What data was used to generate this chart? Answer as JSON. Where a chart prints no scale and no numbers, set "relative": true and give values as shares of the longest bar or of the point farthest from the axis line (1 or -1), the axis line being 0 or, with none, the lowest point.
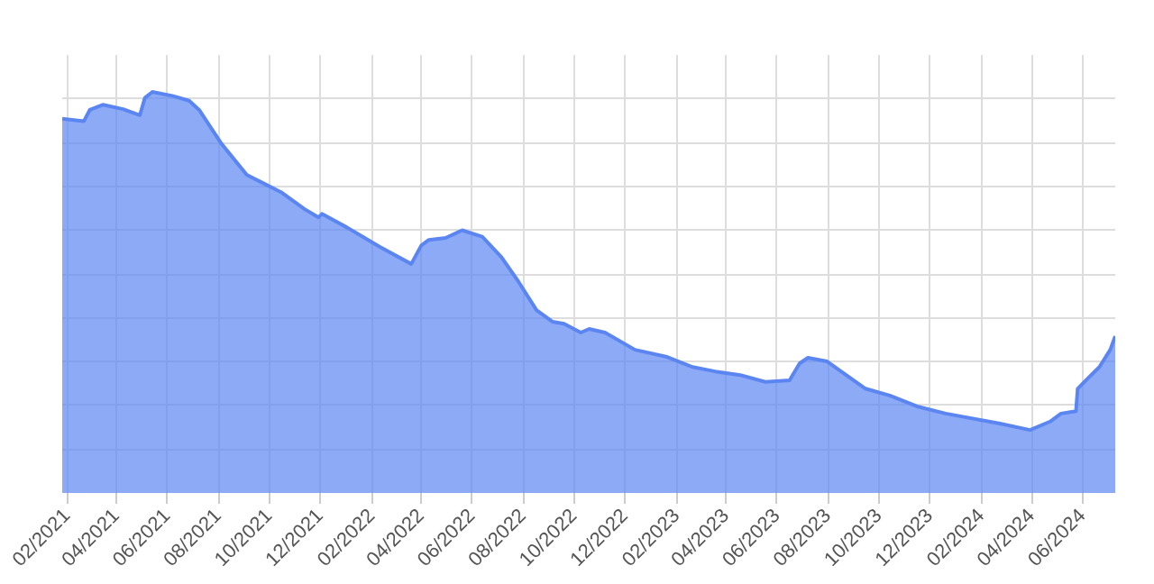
{
  "chart_data": {
    "type": "area",
    "relative": true,
    "grid": true,
    "x": [
      "2021-01-26",
      "2021-02-21",
      "2021-02-28",
      "2021-03-16",
      "2021-04-09",
      "2021-04-29",
      "2021-05-05",
      "2021-05-14",
      "2021-06-07",
      "2021-06-27",
      "2021-07-09",
      "2021-08-05",
      "2021-09-04",
      "2021-09-25",
      "2021-10-15",
      "2021-11-12",
      "2021-11-29",
      "2021-12-03",
      "2022-01-02",
      "2022-02-10",
      "2022-03-20",
      "2022-04-01",
      "2022-04-10",
      "2022-04-30",
      "2022-05-20",
      "2022-06-13",
      "2022-07-06",
      "2022-07-26",
      "2022-08-17",
      "2022-09-05",
      "2022-09-19",
      "2022-10-09",
      "2022-10-19",
      "2022-11-07",
      "2022-12-13",
      "2023-01-19",
      "2023-02-20",
      "2023-03-19",
      "2023-04-18",
      "2023-05-18",
      "2023-06-16",
      "2023-06-28",
      "2023-07-08",
      "2023-07-31",
      "2023-09-15",
      "2023-10-14",
      "2023-11-17",
      "2023-12-20",
      "2024-02-23",
      "2024-03-30",
      "2024-04-23",
      "2024-05-06",
      "2024-05-24",
      "2024-05-26",
      "2024-06-05",
      "2024-06-21",
      "2024-07-04",
      "2024-07-10"
    ],
    "series": [
      {
        "color": "#5b86f2",
        "values": [
          0.933,
          0.927,
          0.955,
          0.968,
          0.957,
          0.942,
          0.985,
          1.0,
          0.99,
          0.978,
          0.955,
          0.87,
          0.793,
          0.771,
          0.75,
          0.708,
          0.687,
          0.696,
          0.662,
          0.614,
          0.571,
          0.617,
          0.631,
          0.636,
          0.655,
          0.639,
          0.588,
          0.528,
          0.456,
          0.427,
          0.422,
          0.4,
          0.409,
          0.4,
          0.357,
          0.34,
          0.314,
          0.303,
          0.294,
          0.277,
          0.281,
          0.323,
          0.337,
          0.328,
          0.26,
          0.243,
          0.215,
          0.198,
          0.173,
          0.157,
          0.178,
          0.198,
          0.204,
          0.26,
          0.281,
          0.314,
          0.357,
          0.391
        ]
      }
    ],
    "xlim": [
      "2021-01-26",
      "2024-07-10"
    ],
    "xticks": [
      {
        "value": "2021-02-01",
        "label": "02/2021"
      },
      {
        "value": "2021-04-01",
        "label": "04/2021"
      },
      {
        "value": "2021-06-01",
        "label": "06/2021"
      },
      {
        "value": "2021-08-01",
        "label": "08/2021"
      },
      {
        "value": "2021-10-01",
        "label": "10/2021"
      },
      {
        "value": "2021-12-01",
        "label": "12/2021"
      },
      {
        "value": "2022-02-01",
        "label": "02/2022"
      },
      {
        "value": "2022-04-01",
        "label": "04/2022"
      },
      {
        "value": "2022-06-01",
        "label": "06/2022"
      },
      {
        "value": "2022-08-01",
        "label": "08/2022"
      },
      {
        "value": "2022-10-01",
        "label": "10/2022"
      },
      {
        "value": "2022-12-01",
        "label": "12/2022"
      },
      {
        "value": "2023-02-01",
        "label": "02/2023"
      },
      {
        "value": "2023-04-01",
        "label": "04/2023"
      },
      {
        "value": "2023-06-01",
        "label": "06/2023"
      },
      {
        "value": "2023-08-01",
        "label": "08/2023"
      },
      {
        "value": "2023-10-01",
        "label": "10/2023"
      },
      {
        "value": "2023-12-01",
        "label": "12/2023"
      },
      {
        "value": "2024-02-01",
        "label": "02/2024"
      },
      {
        "value": "2024-04-01",
        "label": "04/2024"
      },
      {
        "value": "2024-06-01",
        "label": "06/2024"
      }
    ]
  }
}
